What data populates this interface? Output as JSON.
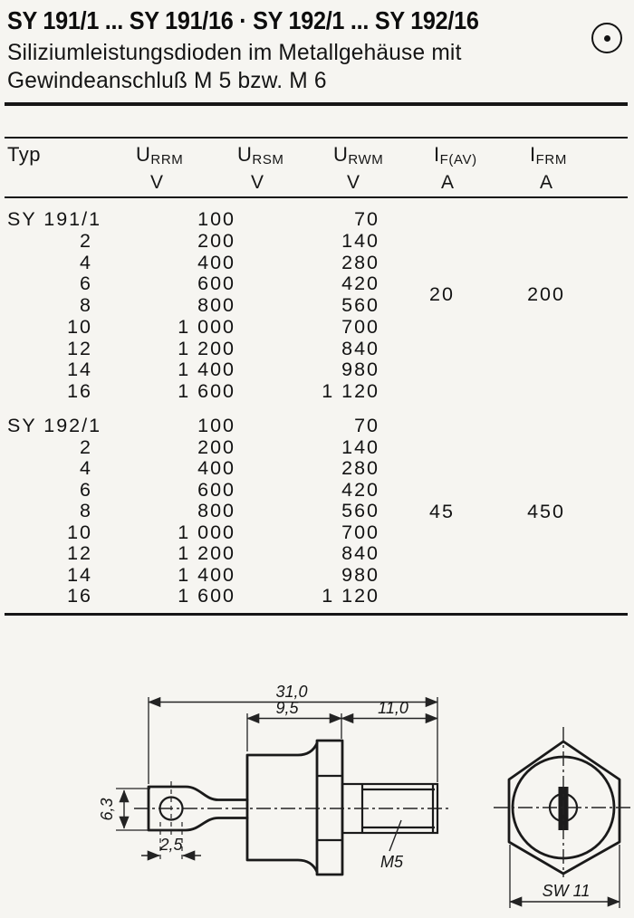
{
  "header": {
    "title": "SY 191/1 ... SY 191/16 · SY 192/1 ... SY 192/16",
    "subtitle_line1": "Siliziumleistungsdioden im Metallgehäuse mit",
    "subtitle_line2": "Gewindeanschluß M 5 bzw. M 6",
    "logo_icon": "circled-dot-logo"
  },
  "table": {
    "type": "table",
    "columns": [
      {
        "label": "Typ",
        "sub": "",
        "unit": ""
      },
      {
        "label": "U",
        "sub": "RRM",
        "unit": "V"
      },
      {
        "label": "U",
        "sub": "RSM",
        "unit": "V"
      },
      {
        "label": "U",
        "sub": "RWM",
        "unit": "V"
      },
      {
        "label": "I",
        "sub": "F(AV)",
        "unit": "A"
      },
      {
        "label": "I",
        "sub": "FRM",
        "unit": "A"
      }
    ],
    "groups": [
      {
        "rows": [
          {
            "typ": "SY 191/1",
            "urrm": "100",
            "urwm": "70"
          },
          {
            "typ": "2",
            "urrm": "200",
            "urwm": "140"
          },
          {
            "typ": "4",
            "urrm": "400",
            "urwm": "280"
          },
          {
            "typ": "6",
            "urrm": "600",
            "urwm": "420"
          },
          {
            "typ": "8",
            "urrm": "800",
            "urwm": "560"
          },
          {
            "typ": "10",
            "urrm": "1 000",
            "urwm": "700"
          },
          {
            "typ": "12",
            "urrm": "1 200",
            "urwm": "840"
          },
          {
            "typ": "14",
            "urrm": "1 400",
            "urwm": "980"
          },
          {
            "typ": "16",
            "urrm": "1 600",
            "urwm": "1 120"
          }
        ],
        "if_av": "20",
        "ifrm": "200"
      },
      {
        "rows": [
          {
            "typ": "SY 192/1",
            "urrm": "100",
            "urwm": "70"
          },
          {
            "typ": "2",
            "urrm": "200",
            "urwm": "140"
          },
          {
            "typ": "4",
            "urrm": "400",
            "urwm": "280"
          },
          {
            "typ": "6",
            "urrm": "600",
            "urwm": "420"
          },
          {
            "typ": "8",
            "urrm": "800",
            "urwm": "560"
          },
          {
            "typ": "10",
            "urrm": "1 000",
            "urwm": "700"
          },
          {
            "typ": "12",
            "urrm": "1 200",
            "urwm": "840"
          },
          {
            "typ": "14",
            "urrm": "1 400",
            "urwm": "980"
          },
          {
            "typ": "16",
            "urrm": "1 600",
            "urwm": "1 120"
          }
        ],
        "if_av": "45",
        "ifrm": "450"
      }
    ]
  },
  "drawing": {
    "side_view": {
      "dim_overall": "31,0",
      "dim_case": "9,5",
      "dim_stud": "11,0",
      "dim_lug_width": "6,3",
      "dim_hole": "2,5",
      "thread_label": "M5"
    },
    "end_view": {
      "dim_wrench": "SW 11"
    }
  }
}
